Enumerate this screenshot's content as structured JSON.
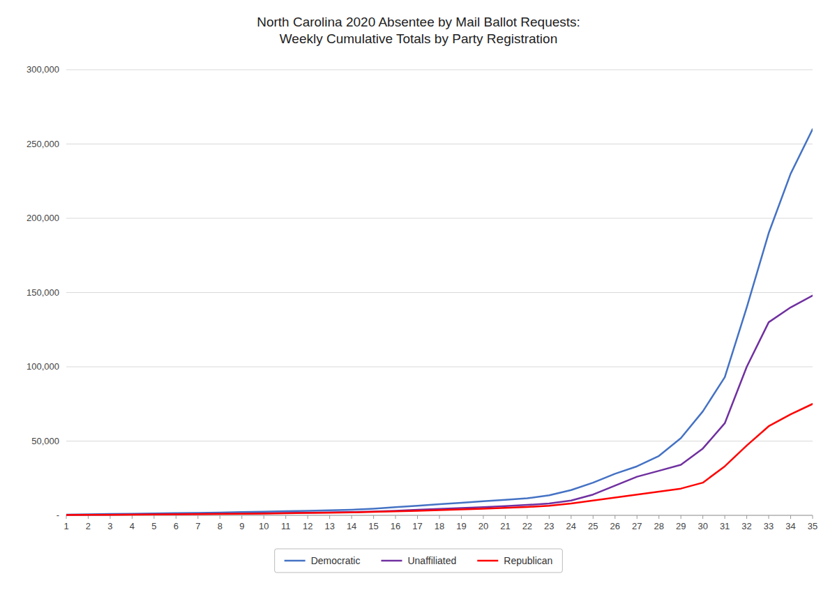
{
  "chart_data": {
    "type": "line",
    "title": "North Carolina 2020 Absentee by Mail Ballot Requests:\nWeekly Cumulative Totals by Party Registration",
    "x": [
      1,
      2,
      3,
      4,
      5,
      6,
      7,
      8,
      9,
      10,
      11,
      12,
      13,
      14,
      15,
      16,
      17,
      18,
      19,
      20,
      21,
      22,
      23,
      24,
      25,
      26,
      27,
      28,
      29,
      30,
      31,
      32,
      33,
      34,
      35
    ],
    "series": [
      {
        "name": "Democratic",
        "color": "#4472C4",
        "values": [
          500,
          700,
          900,
          1100,
          1300,
          1500,
          1700,
          1900,
          2200,
          2500,
          2800,
          3100,
          3400,
          3800,
          4500,
          5500,
          6500,
          7500,
          8500,
          9500,
          10500,
          11500,
          13500,
          17000,
          22000,
          28000,
          33000,
          40000,
          52000,
          70000,
          93000,
          140000,
          190000,
          230000,
          260000
        ]
      },
      {
        "name": "Unaffiliated",
        "color": "#7030A0",
        "values": [
          300,
          400,
          500,
          600,
          700,
          800,
          900,
          1000,
          1200,
          1400,
          1600,
          1800,
          2000,
          2200,
          2600,
          3100,
          3700,
          4300,
          4900,
          5500,
          6200,
          7000,
          8000,
          10000,
          14000,
          20000,
          26000,
          30000,
          34000,
          45000,
          62000,
          100000,
          130000,
          140000,
          148000
        ]
      },
      {
        "name": "Republican",
        "color": "#FF0000",
        "values": [
          200,
          300,
          400,
          500,
          600,
          700,
          800,
          900,
          1000,
          1200,
          1400,
          1600,
          1800,
          2000,
          2300,
          2700,
          3100,
          3500,
          4000,
          4500,
          5000,
          5600,
          6500,
          8000,
          10000,
          12000,
          14000,
          16000,
          18000,
          22000,
          33000,
          47000,
          60000,
          68000,
          75000
        ]
      }
    ],
    "xlim": [
      1,
      35
    ],
    "xticks": [
      1,
      2,
      3,
      4,
      5,
      6,
      7,
      8,
      9,
      10,
      11,
      12,
      13,
      14,
      15,
      16,
      17,
      18,
      19,
      20,
      21,
      22,
      23,
      24,
      25,
      26,
      27,
      28,
      29,
      30,
      31,
      32,
      33,
      34,
      35
    ],
    "ylim": [
      0,
      300000
    ],
    "yticks": [
      {
        "value": 0,
        "label": "-"
      },
      {
        "value": 50000,
        "label": "50,000"
      },
      {
        "value": 100000,
        "label": "100,000"
      },
      {
        "value": 150000,
        "label": "150,000"
      },
      {
        "value": 200000,
        "label": "200,000"
      },
      {
        "value": 250000,
        "label": "250,000"
      },
      {
        "value": 300000,
        "label": "300,000"
      }
    ],
    "grid": true,
    "legend": "bottom"
  }
}
